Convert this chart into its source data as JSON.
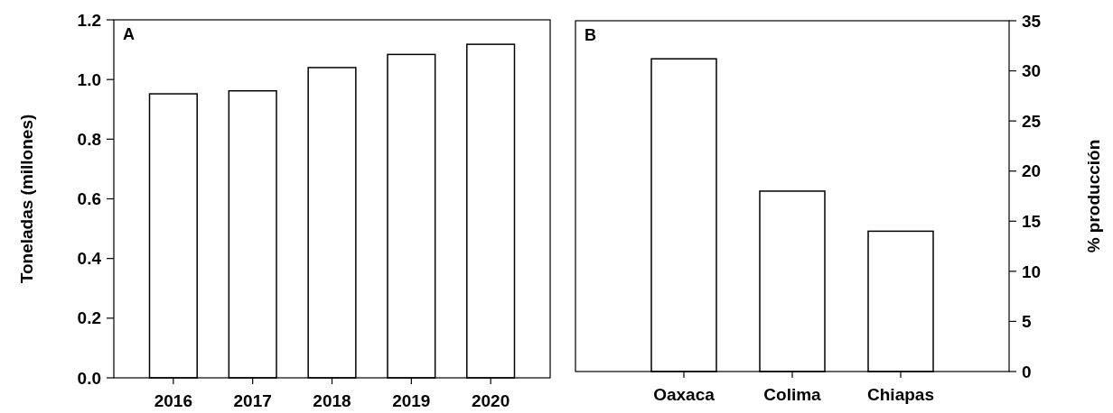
{
  "chart_data": [
    {
      "type": "bar",
      "title": "A",
      "ylabel": "Toneladas (millones)",
      "categories": [
        "2016",
        "2017",
        "2018",
        "2019",
        "2020"
      ],
      "values": [
        0.952,
        0.962,
        1.04,
        1.084,
        1.118
      ],
      "color": "#ffffff",
      "ylim": [
        0,
        1.2
      ],
      "yticks": [
        {
          "value": 0,
          "label": "0.0"
        },
        0.2,
        0.4,
        0.6,
        0.8,
        {
          "value": 1,
          "label": "1.0"
        },
        1.2
      ],
      "grid": false
    },
    {
      "type": "bar",
      "title": "B",
      "y2label": "% producción",
      "categories": [
        "Oaxaca",
        "Colima",
        "Chiapas"
      ],
      "series": [
        {
          "axis": "y2",
          "color": "#ffffff",
          "values": [
            31.2,
            18,
            14
          ]
        }
      ],
      "y2lim": [
        0,
        35
      ],
      "y2ticks": [
        0,
        5,
        10,
        15,
        20,
        25,
        30,
        35
      ],
      "grid": false
    }
  ]
}
